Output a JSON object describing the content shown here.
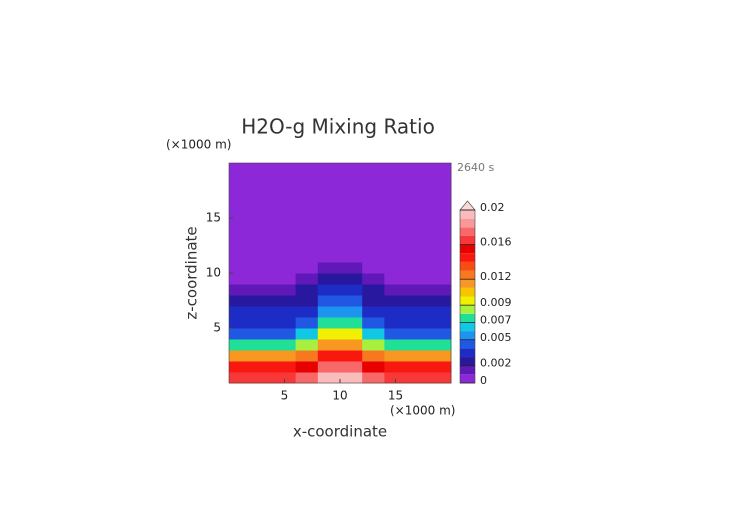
{
  "chart_data": {
    "type": "contour",
    "title": "H2O-g Mixing Ratio",
    "x_unit": "(×1000 m)",
    "y_unit": "(×1000 m)",
    "time_label": "2640 s",
    "x_label": "x-coordinate",
    "y_label": "z-coordinate",
    "xlim": [
      0,
      20
    ],
    "ylim": [
      0,
      20
    ],
    "xticks": [
      5,
      10,
      15
    ],
    "yticks": [
      5,
      10,
      15
    ],
    "x": [
      1,
      3,
      5,
      7,
      9,
      11,
      13,
      15,
      17,
      19
    ],
    "y": [
      0.5,
      1.5,
      2.5,
      3.5,
      4.5,
      5.5,
      6.5,
      7.5,
      8.5,
      9.5,
      10.5,
      11.5,
      12.5,
      13.5,
      14.5,
      15.5,
      16.5,
      17.5,
      18.5,
      19.5
    ],
    "z": [
      [
        0.016,
        0.016,
        0.016,
        0.017,
        0.019,
        0.019,
        0.017,
        0.016,
        0.016,
        0.016
      ],
      [
        0.014,
        0.014,
        0.014,
        0.015,
        0.017,
        0.017,
        0.015,
        0.014,
        0.014,
        0.014
      ],
      [
        0.011,
        0.011,
        0.011,
        0.012,
        0.014,
        0.014,
        0.012,
        0.011,
        0.011,
        0.011
      ],
      [
        0.007,
        0.007,
        0.007,
        0.008,
        0.011,
        0.011,
        0.008,
        0.007,
        0.007,
        0.007
      ],
      [
        0.0045,
        0.0045,
        0.0045,
        0.006,
        0.009,
        0.009,
        0.006,
        0.0045,
        0.0045,
        0.0045
      ],
      [
        0.0035,
        0.0035,
        0.0035,
        0.0045,
        0.007,
        0.007,
        0.0045,
        0.0035,
        0.0035,
        0.0035
      ],
      [
        0.003,
        0.003,
        0.003,
        0.0035,
        0.005,
        0.005,
        0.0035,
        0.003,
        0.003,
        0.003
      ],
      [
        0.0022,
        0.0022,
        0.0022,
        0.0028,
        0.004,
        0.004,
        0.0028,
        0.0022,
        0.0022,
        0.0022
      ],
      [
        0.0015,
        0.0015,
        0.0015,
        0.002,
        0.003,
        0.003,
        0.002,
        0.0015,
        0.0015,
        0.0015
      ],
      [
        0.0009,
        0.0009,
        0.0009,
        0.0013,
        0.0022,
        0.0022,
        0.0013,
        0.0009,
        0.0009,
        0.0009
      ],
      [
        0.0008,
        0.0008,
        0.0008,
        0.0009,
        0.0015,
        0.0015,
        0.0009,
        0.0008,
        0.0008,
        0.0008
      ],
      [
        0.0008,
        0.0008,
        0.0008,
        0.0008,
        0.0009,
        0.0009,
        0.0008,
        0.0008,
        0.0008,
        0.0008
      ],
      [
        0.0007,
        0.0007,
        0.0007,
        0.0008,
        0.0008,
        0.0008,
        0.0008,
        0.0007,
        0.0007,
        0.0007
      ],
      [
        0.0007,
        0.0007,
        0.0007,
        0.0007,
        0.0007,
        0.0007,
        0.0007,
        0.0007,
        0.0007,
        0.0007
      ],
      [
        0.0007,
        0.0007,
        0.0007,
        0.0007,
        0.0007,
        0.0007,
        0.0007,
        0.0007,
        0.0007,
        0.0007
      ],
      [
        0.0006,
        0.0006,
        0.0006,
        0.0006,
        0.0006,
        0.0006,
        0.0006,
        0.0006,
        0.0006,
        0.0006
      ],
      [
        0.0006,
        0.0006,
        0.0006,
        0.0006,
        0.0006,
        0.0006,
        0.0006,
        0.0006,
        0.0006,
        0.0006
      ],
      [
        0.0006,
        0.0006,
        0.0006,
        0.0006,
        0.0006,
        0.0006,
        0.0006,
        0.0006,
        0.0006,
        0.0006
      ],
      [
        0.0005,
        0.0005,
        0.0005,
        0.0005,
        0.0005,
        0.0005,
        0.0005,
        0.0005,
        0.0005,
        0.0005
      ],
      [
        0.0005,
        0.0005,
        0.0005,
        0.0005,
        0.0005,
        0.0005,
        0.0005,
        0.0005,
        0.0005,
        0.0005
      ]
    ],
    "levels": [
      0,
      0.001,
      0.002,
      0.003,
      0.004,
      0.005,
      0.006,
      0.007,
      0.008,
      0.009,
      0.01,
      0.011,
      0.012,
      0.013,
      0.014,
      0.015,
      0.016,
      0.017,
      0.018,
      0.019,
      0.02
    ],
    "colors": [
      "#8c28d8",
      "#6018b8",
      "#2818a0",
      "#1c2cc4",
      "#2058e4",
      "#1c94f0",
      "#10c8e4",
      "#20e098",
      "#a8f040",
      "#f0f000",
      "#f8c400",
      "#f89820",
      "#f87820",
      "#f84c10",
      "#f81810",
      "#e80000",
      "#f83838",
      "#f86868",
      "#f89898",
      "#f8bcbc"
    ],
    "over_color": "#f8d8d8",
    "colorbar_ticks": [
      0,
      0.002,
      0.005,
      0.007,
      0.009,
      0.012,
      0.016,
      0.02
    ]
  }
}
